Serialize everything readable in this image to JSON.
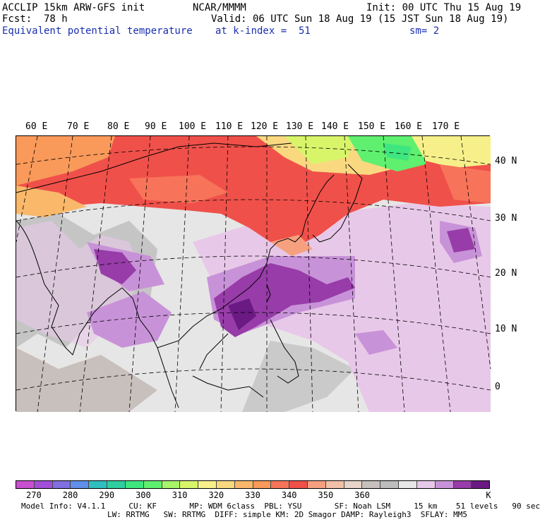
{
  "header": {
    "model": "ACCLIP 15km ARW-GFS init",
    "org": "NCAR/MMMM",
    "init": "Init: 00 UTC Thu 15 Aug 19",
    "fcst_label": "Fcst:",
    "fcst_value": "78 h",
    "valid": "Valid: 06 UTC Sun 18 Aug 19 (15 JST Sun 18 Aug 19)",
    "field": "Equivalent potential temperature",
    "level": "at k-index =  51",
    "smooth": "sm= 2"
  },
  "map": {
    "lon_labels": [
      "60 E",
      "70 E",
      "80 E",
      "90 E",
      "100 E",
      "110 E",
      "120 E",
      "130 E",
      "140 E",
      "150 E",
      "160 E",
      "170 E"
    ],
    "lat_labels": [
      "40 N",
      "30 N",
      "20 N",
      "10 N",
      "0"
    ]
  },
  "colorbar": {
    "colors": [
      "#c84fcf",
      "#a14fd8",
      "#7f6fe0",
      "#5f8fe8",
      "#2fbfbf",
      "#2fcf9f",
      "#3fe67f",
      "#5ff06f",
      "#a8f56a",
      "#d8f56a",
      "#f7f08a",
      "#f9d880",
      "#f9b86a",
      "#f99a5a",
      "#f7745a",
      "#f0504a",
      "#f7a080",
      "#f2c0a8",
      "#e8d4c8",
      "#c8c0bc",
      "#bdbdbd",
      "#e6e6e6",
      "#e8c8e8",
      "#c892d8",
      "#973ca8",
      "#6a1a82"
    ],
    "tick_labels": [
      "270",
      "280",
      "290",
      "300",
      "310",
      "320",
      "330",
      "340",
      "350",
      "360"
    ],
    "unit": "K"
  },
  "footer": {
    "line1": "Model Info: V4.1.1     CU: KF       MP: WDM 6class  PBL: YSU       SF: Noah LSM     15 km    51 levels   90 sec",
    "line2": "LW: RRTMG   SW: RRTMG  DIFF: simple KM: 2D Smagor DAMP: Rayleigh3  SFLAY: MM5"
  }
}
